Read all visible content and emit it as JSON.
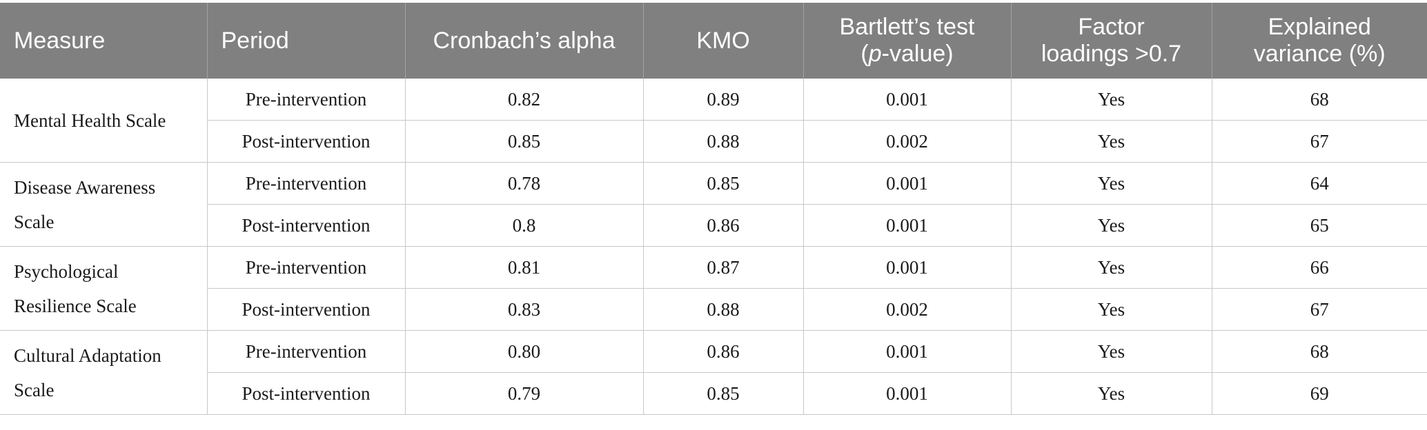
{
  "table": {
    "headers": [
      {
        "text": "Measure"
      },
      {
        "text": "Period"
      },
      {
        "text": "Cronbach’s alpha"
      },
      {
        "text": "KMO"
      },
      {
        "line1": "Bartlett’s test",
        "open": "(",
        "p": "p",
        "rest": "-value)"
      },
      {
        "line1": "Factor",
        "line2": "loadings >0.7"
      },
      {
        "line1": "Explained",
        "line2": "variance (%)"
      }
    ],
    "groups": [
      {
        "measure": "Mental Health Scale",
        "rows": [
          {
            "period": "Pre-intervention",
            "alpha": "0.82",
            "kmo": "0.89",
            "bartlett": "0.001",
            "loadings": "Yes",
            "variance": "68"
          },
          {
            "period": "Post-intervention",
            "alpha": "0.85",
            "kmo": "0.88",
            "bartlett": "0.002",
            "loadings": "Yes",
            "variance": "67"
          }
        ]
      },
      {
        "measure_line1": "Disease Awareness",
        "measure_line2": "Scale",
        "rows": [
          {
            "period": "Pre-intervention",
            "alpha": "0.78",
            "kmo": "0.85",
            "bartlett": "0.001",
            "loadings": "Yes",
            "variance": "64"
          },
          {
            "period": "Post-intervention",
            "alpha": "0.8",
            "kmo": "0.86",
            "bartlett": "0.001",
            "loadings": "Yes",
            "variance": "65"
          }
        ]
      },
      {
        "measure_line1": "Psychological",
        "measure_line2": "Resilience Scale",
        "rows": [
          {
            "period": "Pre-intervention",
            "alpha": "0.81",
            "kmo": "0.87",
            "bartlett": "0.001",
            "loadings": "Yes",
            "variance": "66"
          },
          {
            "period": "Post-intervention",
            "alpha": "0.83",
            "kmo": "0.88",
            "bartlett": "0.002",
            "loadings": "Yes",
            "variance": "67"
          }
        ]
      },
      {
        "measure_line1": "Cultural Adaptation",
        "measure_line2": "Scale",
        "rows": [
          {
            "period": "Pre-intervention",
            "alpha": "0.80",
            "kmo": "0.86",
            "bartlett": "0.001",
            "loadings": "Yes",
            "variance": "68"
          },
          {
            "period": "Post-intervention",
            "alpha": "0.79",
            "kmo": "0.85",
            "bartlett": "0.001",
            "loadings": "Yes",
            "variance": "69"
          }
        ]
      }
    ]
  }
}
